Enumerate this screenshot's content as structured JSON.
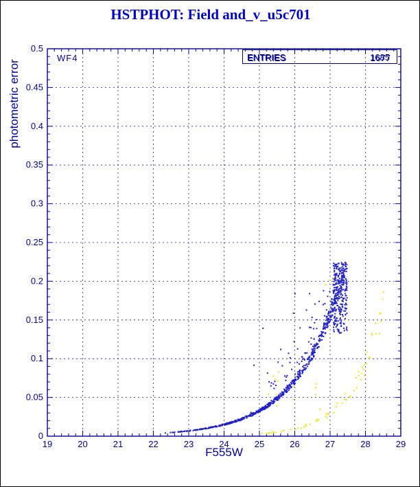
{
  "title": "HSTPHOT: Field and_v_u5c701",
  "labels": {
    "detector": "WF4",
    "xlabel": "F555W",
    "ylabel": "photometric error"
  },
  "stats_box": {
    "label_primary": "ENTRIES",
    "label_secondary": "ENTRIES",
    "value_primary": "1685",
    "value_secondary": "1677"
  },
  "colors": {
    "frame_border": "#000000",
    "axis": "#0000a0",
    "grid": "#0000a0",
    "title_text": "#0000cc",
    "tick_text": "#0000a0",
    "series_blue": "#2020c8",
    "series_yellow": "#f0e400"
  },
  "axes": {
    "x": {
      "min": 19,
      "max": 29,
      "ticks": [
        19,
        20,
        21,
        22,
        23,
        24,
        25,
        26,
        27,
        28,
        29
      ],
      "tick_labels": [
        "19",
        "20",
        "21",
        "22",
        "23",
        "24",
        "25",
        "26",
        "27",
        "28",
        "29"
      ],
      "minor_step": 0.2
    },
    "y": {
      "min": 0,
      "max": 0.5,
      "ticks": [
        0,
        0.05,
        0.1,
        0.15,
        0.2,
        0.25,
        0.3,
        0.35,
        0.4,
        0.45,
        0.5
      ],
      "tick_labels": [
        "0",
        "0.05",
        "0.1",
        "0.15",
        "0.2",
        "0.25",
        "0.3",
        "0.35",
        "0.4",
        "0.45",
        "0.5"
      ],
      "minor_step": 0.01
    }
  },
  "chart_data": {
    "type": "scatter",
    "title": "HSTPHOT: Field and_v_u5c701",
    "xlabel": "F555W",
    "ylabel": "photometric error",
    "xlim": [
      19,
      29
    ],
    "ylim": [
      0,
      0.5
    ],
    "grid": true,
    "grid_style": "dashed",
    "legend": "none",
    "entries": 1685,
    "series": [
      {
        "name": "blue-photometric-error-sequence",
        "color": "#2020c8",
        "description": "dense error-vs-magnitude curve rising steeply to the faint limit with a thick vertical clump at the faint end",
        "ridge_points": [
          [
            22.3,
            0.005
          ],
          [
            23.0,
            0.007
          ],
          [
            23.5,
            0.01
          ],
          [
            24.0,
            0.015
          ],
          [
            24.5,
            0.022
          ],
          [
            25.0,
            0.033
          ],
          [
            25.5,
            0.049
          ],
          [
            26.0,
            0.072
          ],
          [
            26.5,
            0.106
          ],
          [
            27.0,
            0.157
          ],
          [
            27.2,
            0.184
          ],
          [
            27.4,
            0.215
          ]
        ],
        "x_range": [
          22.3,
          27.45
        ],
        "y_max": 0.224,
        "approx_n": 1100
      },
      {
        "name": "yellow-photometric-error-sequence",
        "color": "#f0e400",
        "description": "sparser, lower error curve extending to fainter magnitudes, with a few stray points mixed into the blue locus",
        "ridge_points": [
          [
            25.0,
            0.003
          ],
          [
            25.5,
            0.005
          ],
          [
            26.0,
            0.009
          ],
          [
            26.5,
            0.017
          ],
          [
            27.0,
            0.03
          ],
          [
            27.5,
            0.053
          ],
          [
            28.0,
            0.094
          ],
          [
            28.5,
            0.168
          ]
        ],
        "x_range": [
          24.9,
          28.55
        ],
        "y_max": 0.21,
        "approx_n": 80
      }
    ],
    "render": {
      "seed": 1337,
      "blue": {
        "a": 0.004,
        "b": 0.78,
        "x0": 22.3,
        "xmin": 22.3,
        "xmax": 27.45,
        "curve_n": 720,
        "clump_n": 260,
        "outlier_n": 45
      },
      "yellow": {
        "a": 0.003,
        "b": 1.15,
        "x0": 25.0,
        "xmin": 24.9,
        "xmax": 28.55,
        "curve_n": 62,
        "stray_n": 14,
        "high_n": 3
      }
    }
  }
}
